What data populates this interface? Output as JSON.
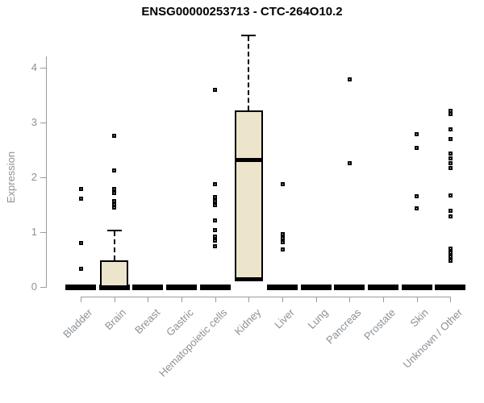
{
  "title": "ENSG00000253713 - CTC-264O10.2",
  "colors": {
    "box_fill": "#ece5cc",
    "box_border": "#000000",
    "axis_line": "#9b9b9b",
    "tick_text": "#8b9196",
    "title_text": "#000000",
    "background": "#ffffff"
  },
  "chart_data": {
    "type": "boxplot",
    "title": "ENSG00000253713 - CTC-264O10.2",
    "xlabel": "",
    "ylabel": "Expression",
    "ylim": [
      -0.1,
      4.7
    ],
    "yticks": [
      0,
      1,
      2,
      3,
      4
    ],
    "grid": false,
    "legend": false,
    "categories": [
      "Bladder",
      "Brain",
      "Breast",
      "Gastric",
      "Hematopoietic cells",
      "Kidney",
      "Liver",
      "Lung",
      "Pancreas",
      "Prostate",
      "Skin",
      "Unknown / Other"
    ],
    "series": [
      {
        "label": "Bladder",
        "q1": 0,
        "median": 0,
        "q3": 0,
        "whisker_low": 0,
        "whisker_high": 0,
        "zero_bar": true,
        "outliers": [
          1.78,
          1.61,
          0.8,
          0.33
        ]
      },
      {
        "label": "Brain",
        "q1": 0,
        "median": 0,
        "q3": 0.48,
        "whisker_low": 0,
        "whisker_high": 1.04,
        "zero_bar": true,
        "outliers": [
          2.76,
          2.12,
          1.78,
          1.72,
          1.56,
          1.51,
          1.45
        ]
      },
      {
        "label": "Breast",
        "q1": 0,
        "median": 0,
        "q3": 0,
        "whisker_low": 0,
        "whisker_high": 0,
        "zero_bar": true,
        "outliers": []
      },
      {
        "label": "Gastric",
        "q1": 0,
        "median": 0,
        "q3": 0,
        "whisker_low": 0,
        "whisker_high": 0,
        "zero_bar": true,
        "outliers": []
      },
      {
        "label": "Hematopoietic cells",
        "q1": 0,
        "median": 0,
        "q3": 0,
        "whisker_low": 0,
        "whisker_high": 0,
        "zero_bar": true,
        "outliers": [
          3.59,
          1.88,
          1.64,
          1.56,
          1.49,
          1.22,
          1.04,
          0.92,
          0.85,
          0.75
        ]
      },
      {
        "label": "Kidney",
        "q1": 0.1,
        "median": 2.32,
        "q3": 3.22,
        "whisker_low": 0.1,
        "whisker_high": 4.6,
        "zero_bar": false,
        "outliers": []
      },
      {
        "label": "Liver",
        "q1": 0,
        "median": 0,
        "q3": 0,
        "whisker_low": 0,
        "whisker_high": 0,
        "zero_bar": true,
        "outliers": [
          1.87,
          0.97,
          0.89,
          0.81,
          0.69
        ]
      },
      {
        "label": "Lung",
        "q1": 0,
        "median": 0,
        "q3": 0,
        "whisker_low": 0,
        "whisker_high": 0,
        "zero_bar": true,
        "outliers": []
      },
      {
        "label": "Pancreas",
        "q1": 0,
        "median": 0,
        "q3": 0,
        "whisker_low": 0,
        "whisker_high": 0,
        "zero_bar": true,
        "outliers": [
          3.79,
          2.26
        ]
      },
      {
        "label": "Prostate",
        "q1": 0,
        "median": 0,
        "q3": 0,
        "whisker_low": 0,
        "whisker_high": 0,
        "zero_bar": true,
        "outliers": []
      },
      {
        "label": "Skin",
        "q1": 0,
        "median": 0,
        "q3": 0,
        "whisker_low": 0,
        "whisker_high": 0,
        "zero_bar": true,
        "outliers": [
          2.78,
          2.53,
          1.66,
          1.44
        ]
      },
      {
        "label": "Unknown / Other",
        "q1": 0,
        "median": 0,
        "q3": 0,
        "whisker_low": 0,
        "whisker_high": 0,
        "zero_bar": true,
        "outliers": [
          3.22,
          3.15,
          2.87,
          2.7,
          2.44,
          2.35,
          2.26,
          2.17,
          1.67,
          1.39,
          1.28,
          0.7,
          0.63,
          0.55,
          0.48
        ]
      }
    ]
  }
}
